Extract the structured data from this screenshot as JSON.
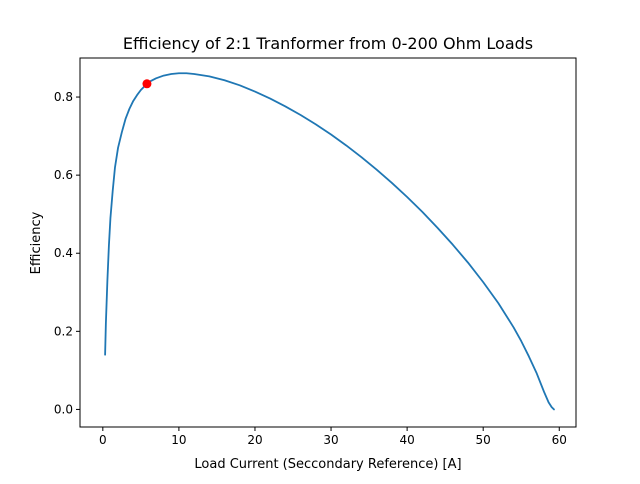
{
  "chart_data": {
    "type": "line",
    "title": "Efficiency of 2:1 Tranformer from 0-200 Ohm Loads",
    "xlabel": "Load Current (Seccondary Reference) [A]",
    "ylabel": "Efficiency",
    "xlim": [
      -3,
      62.2
    ],
    "ylim": [
      -0.045,
      0.9
    ],
    "grid": false,
    "xticks": [
      0,
      10,
      20,
      30,
      40,
      50,
      60
    ],
    "xtick_labels": [
      "0",
      "10",
      "20",
      "30",
      "40",
      "50",
      "60"
    ],
    "yticks": [
      0.0,
      0.2,
      0.4,
      0.6,
      0.8
    ],
    "ytick_labels": [
      "0.0",
      "0.2",
      "0.4",
      "0.6",
      "0.8"
    ],
    "series": [
      {
        "color": "#1f77b4",
        "x": [
          0.3,
          0.4,
          0.6,
          0.8,
          1.0,
          1.3,
          1.6,
          2.0,
          2.5,
          3.0,
          3.5,
          4.0,
          4.5,
          5.0,
          5.5,
          6.0,
          7.0,
          8.0,
          9.0,
          10.0,
          11.0,
          12.0,
          14.0,
          16.0,
          18.0,
          20.0,
          22.0,
          24.0,
          26.0,
          28.0,
          30.0,
          32.0,
          34.0,
          36.0,
          38.0,
          40.0,
          42.0,
          44.0,
          46.0,
          48.0,
          50.0,
          52.0,
          54.0,
          55.0,
          56.0,
          57.0,
          58.0,
          58.6,
          59.0,
          59.3
        ],
        "y": [
          0.14,
          0.22,
          0.33,
          0.42,
          0.49,
          0.56,
          0.62,
          0.67,
          0.71,
          0.745,
          0.77,
          0.79,
          0.805,
          0.818,
          0.828,
          0.838,
          0.848,
          0.855,
          0.859,
          0.861,
          0.861,
          0.859,
          0.853,
          0.843,
          0.83,
          0.814,
          0.796,
          0.776,
          0.754,
          0.73,
          0.704,
          0.676,
          0.646,
          0.614,
          0.58,
          0.544,
          0.506,
          0.465,
          0.422,
          0.376,
          0.326,
          0.272,
          0.21,
          0.175,
          0.136,
          0.094,
          0.045,
          0.018,
          0.006,
          0.0
        ]
      },
      {
        "color": "#ff0000",
        "type": "marker",
        "x": [
          5.8
        ],
        "y": [
          0.834
        ]
      }
    ]
  }
}
